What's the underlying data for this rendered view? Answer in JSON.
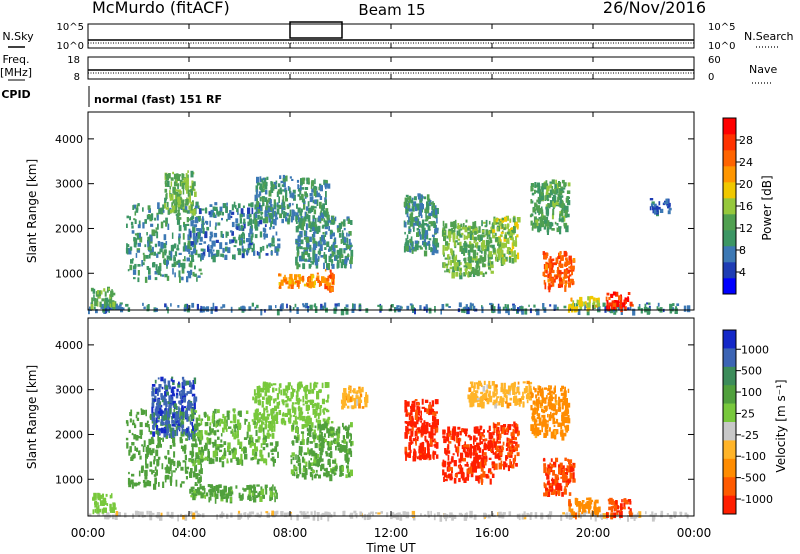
{
  "header": {
    "station": "McMurdo (fitACF)",
    "beam": "Beam 15",
    "date": "26/Nov/2016"
  },
  "side_labels": {
    "nsky": "N.Sky",
    "freq_line1": "Freq.",
    "freq_line2": "[MHz]",
    "cpid": "CPID",
    "nsearch": "N.Search",
    "nave": "Nave"
  },
  "status_axes": {
    "nsky_ticks": [
      "10^5",
      "10^0"
    ],
    "nsearch_ticks": [
      "10^5",
      "10^0"
    ],
    "freq_ticks": [
      "18",
      "8"
    ],
    "nave_ticks": [
      "60",
      "0"
    ]
  },
  "cpid_text": "normal (fast) 151 RF",
  "chart_data": [
    {
      "type": "heatmap",
      "panel": "power",
      "ylabel": "Slant Range [km]",
      "xlabel": "Time UT",
      "x_ticks": [
        "00:00",
        "04:00",
        "08:00",
        "12:00",
        "16:00",
        "20:00",
        "00:00"
      ],
      "y_ticks": [
        "1000",
        "2000",
        "3000",
        "4000"
      ],
      "y_range_km": [
        180,
        4600
      ],
      "x_range_hours": [
        0,
        24
      ],
      "colorbar": {
        "label": "Power [dB]",
        "ticks": [
          "4",
          "8",
          "12",
          "16",
          "20",
          "24",
          "28"
        ],
        "range": [
          0,
          32
        ],
        "colors": [
          "#0000ff",
          "#1e3cb4",
          "#3c78b4",
          "#3c9664",
          "#50a050",
          "#96c83c",
          "#f0c800",
          "#ff9600",
          "#ff6400",
          "#ff3200",
          "#ff0000"
        ]
      },
      "echo_regions": [
        {
          "t0": 0.0,
          "t1": 24.0,
          "r0": 200,
          "r1": 350,
          "db": 8
        },
        {
          "t0": 0.1,
          "t1": 1.0,
          "r0": 300,
          "r1": 700,
          "db": 14
        },
        {
          "t0": 1.5,
          "t1": 4.5,
          "r0": 900,
          "r1": 2600,
          "db": 10
        },
        {
          "t0": 3.0,
          "t1": 4.2,
          "r0": 2400,
          "r1": 3300,
          "db": 14
        },
        {
          "t0": 4.0,
          "t1": 7.5,
          "r0": 1400,
          "r1": 2600,
          "db": 8
        },
        {
          "t0": 6.5,
          "t1": 9.5,
          "r0": 2200,
          "r1": 3200,
          "db": 10
        },
        {
          "t0": 7.5,
          "t1": 9.0,
          "r0": 700,
          "r1": 1000,
          "db": 22
        },
        {
          "t0": 9.0,
          "t1": 9.7,
          "r0": 650,
          "r1": 1100,
          "db": 24
        },
        {
          "t0": 8.2,
          "t1": 10.4,
          "r0": 1200,
          "r1": 2300,
          "db": 10
        },
        {
          "t0": 12.5,
          "t1": 13.8,
          "r0": 1500,
          "r1": 2800,
          "db": 10
        },
        {
          "t0": 14.0,
          "t1": 16.0,
          "r0": 1000,
          "r1": 2200,
          "db": 14
        },
        {
          "t0": 16.0,
          "t1": 17.0,
          "r0": 1300,
          "r1": 2300,
          "db": 16
        },
        {
          "t0": 17.5,
          "t1": 19.0,
          "r0": 2000,
          "r1": 3100,
          "db": 12
        },
        {
          "t0": 18.0,
          "t1": 19.2,
          "r0": 700,
          "r1": 1500,
          "db": 26
        },
        {
          "t0": 19.0,
          "t1": 20.2,
          "r0": 250,
          "r1": 500,
          "db": 18
        },
        {
          "t0": 20.5,
          "t1": 21.5,
          "r0": 250,
          "r1": 600,
          "db": 28
        },
        {
          "t0": 22.2,
          "t1": 23.0,
          "r0": 2400,
          "r1": 2700,
          "db": 6
        }
      ]
    },
    {
      "type": "heatmap",
      "panel": "velocity",
      "ylabel": "Slant Range [km]",
      "xlabel": "Time UT",
      "x_ticks": [
        "00:00",
        "04:00",
        "08:00",
        "12:00",
        "16:00",
        "20:00",
        "00:00"
      ],
      "y_ticks": [
        "1000",
        "2000",
        "3000",
        "4000"
      ],
      "y_range_km": [
        180,
        4600
      ],
      "x_range_hours": [
        0,
        24
      ],
      "colorbar": {
        "label": "Velocity [m s⁻¹]",
        "ticks": [
          "1000",
          "500",
          "100",
          "25",
          "-25",
          "-100",
          "-500",
          "-1000"
        ],
        "colors": [
          "#1428c8",
          "#3c64b4",
          "#3c8c5a",
          "#50a03c",
          "#78c83c",
          "#c8c8c8",
          "#ffb428",
          "#ff8c00",
          "#ff5a00",
          "#ff1e00"
        ]
      },
      "echo_regions": [
        {
          "t0": 0.0,
          "t1": 24.0,
          "r0": 200,
          "r1": 300,
          "v": 50
        },
        {
          "t0": 0.1,
          "t1": 1.0,
          "r0": 300,
          "r1": 700,
          "v": 200
        },
        {
          "t0": 1.5,
          "t1": 4.5,
          "r0": 900,
          "r1": 2600,
          "v": 400
        },
        {
          "t0": 2.5,
          "t1": 4.2,
          "r0": 2000,
          "r1": 3300,
          "v": 900
        },
        {
          "t0": 4.0,
          "t1": 7.5,
          "r0": 600,
          "r1": 900,
          "v": 300
        },
        {
          "t0": 4.0,
          "t1": 7.5,
          "r0": 1400,
          "r1": 2600,
          "v": 250
        },
        {
          "t0": 6.5,
          "t1": 9.5,
          "r0": 2200,
          "r1": 3200,
          "v": 200
        },
        {
          "t0": 8.0,
          "t1": 10.4,
          "r0": 1100,
          "r1": 2300,
          "v": 300
        },
        {
          "t0": 10.0,
          "t1": 11.0,
          "r0": 2600,
          "r1": 3100,
          "v": 0
        },
        {
          "t0": 12.5,
          "t1": 13.8,
          "r0": 1500,
          "r1": 2800,
          "v": -300
        },
        {
          "t0": 14.0,
          "t1": 16.0,
          "r0": 1000,
          "r1": 2200,
          "v": -300
        },
        {
          "t0": 15.0,
          "t1": 17.5,
          "r0": 2700,
          "r1": 3200,
          "v": 0
        },
        {
          "t0": 16.0,
          "t1": 17.0,
          "r0": 1300,
          "r1": 2300,
          "v": -250
        },
        {
          "t0": 17.5,
          "t1": 19.0,
          "r0": 2000,
          "r1": 3100,
          "v": -50
        },
        {
          "t0": 18.0,
          "t1": 19.2,
          "r0": 700,
          "r1": 1500,
          "v": -250
        },
        {
          "t0": 19.0,
          "t1": 20.2,
          "r0": 250,
          "r1": 600,
          "v": -80
        },
        {
          "t0": 20.5,
          "t1": 21.5,
          "r0": 250,
          "r1": 600,
          "v": -250
        }
      ]
    }
  ]
}
